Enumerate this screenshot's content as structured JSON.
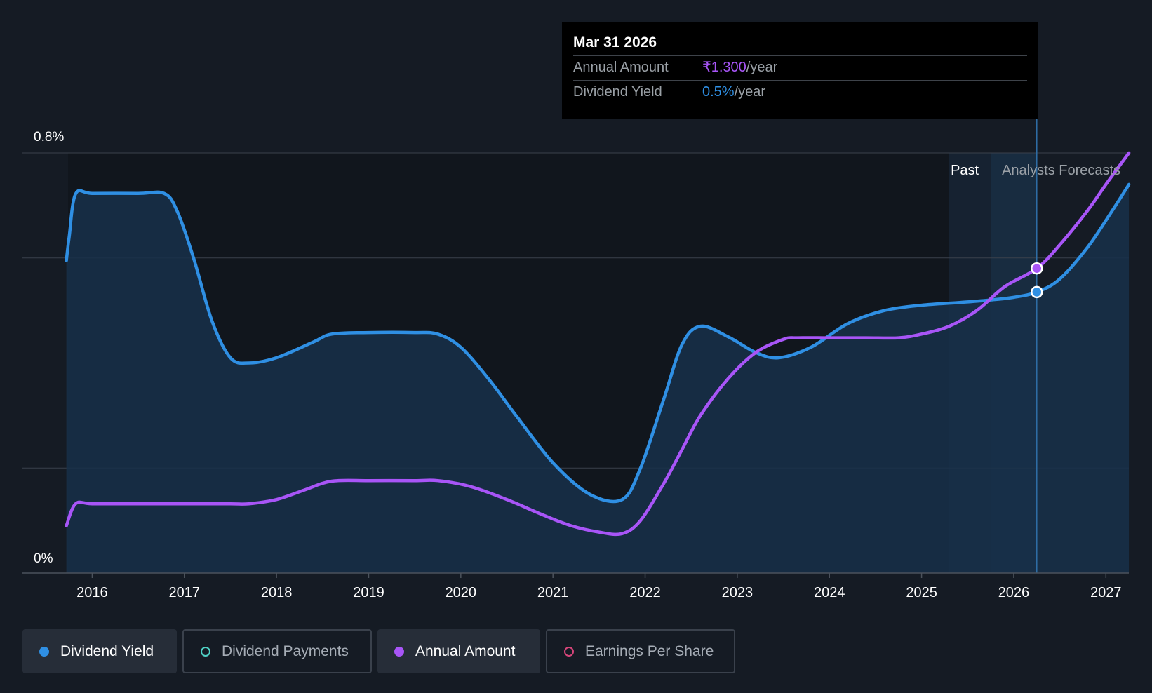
{
  "tooltip": {
    "date": "Mar 31 2026",
    "annual_label": "Annual Amount",
    "annual_value": "₹1.300",
    "annual_unit": "/year",
    "yield_label": "Dividend Yield",
    "yield_value": "0.5%",
    "yield_unit": "/year"
  },
  "legend": [
    {
      "label": "Dividend Yield",
      "color": "#2f8fe3",
      "filled": true,
      "active": true
    },
    {
      "label": "Dividend Payments",
      "color": "#4fd1c5",
      "filled": false,
      "active": false
    },
    {
      "label": "Annual Amount",
      "color": "#a855f7",
      "filled": true,
      "active": true
    },
    {
      "label": "Earnings Per Share",
      "color": "#d6457a",
      "filled": false,
      "active": false
    }
  ],
  "colors": {
    "background": "#151b24",
    "past_region": "#11161d",
    "yield_line": "#2f8fe3",
    "yield_fill": "#17304a",
    "amount_line": "#a855f7",
    "grid": "#3a414c",
    "forecast_band": "#1b3a57"
  },
  "chart_data": {
    "type": "line",
    "title": "",
    "xlabel": "",
    "ylabel": "",
    "ylim": [
      0,
      0.8
    ],
    "xlim": [
      2015.3,
      2027.2
    ],
    "y_ticks": [
      {
        "value": 0,
        "label": "0%"
      },
      {
        "value": 0.8,
        "label": "0.8%"
      }
    ],
    "y_grid": [
      0.2,
      0.4,
      0.6,
      0.8
    ],
    "x_ticks": [
      "2016",
      "2017",
      "2018",
      "2019",
      "2020",
      "2021",
      "2022",
      "2023",
      "2024",
      "2025",
      "2026",
      "2027"
    ],
    "regions": {
      "past_label": "Past",
      "forecast_label": "Analysts Forecasts",
      "past_band": [
        2025.3,
        2025.75
      ],
      "forecast_band": [
        2025.75,
        2026.25
      ],
      "highlight_x": 2026.25
    },
    "series": [
      {
        "name": "Dividend Yield",
        "color": "#2f8fe3",
        "fill": true,
        "points": [
          [
            2015.72,
            0.595
          ],
          [
            2015.75,
            0.64
          ],
          [
            2015.82,
            0.722
          ],
          [
            2016.0,
            0.723
          ],
          [
            2016.5,
            0.723
          ],
          [
            2016.78,
            0.723
          ],
          [
            2016.92,
            0.69
          ],
          [
            2017.1,
            0.6
          ],
          [
            2017.3,
            0.48
          ],
          [
            2017.5,
            0.41
          ],
          [
            2017.7,
            0.4
          ],
          [
            2018.0,
            0.41
          ],
          [
            2018.4,
            0.44
          ],
          [
            2018.6,
            0.455
          ],
          [
            2019.0,
            0.458
          ],
          [
            2019.5,
            0.458
          ],
          [
            2019.75,
            0.455
          ],
          [
            2020.0,
            0.43
          ],
          [
            2020.3,
            0.37
          ],
          [
            2020.6,
            0.3
          ],
          [
            2021.0,
            0.21
          ],
          [
            2021.4,
            0.15
          ],
          [
            2021.75,
            0.14
          ],
          [
            2021.95,
            0.2
          ],
          [
            2022.2,
            0.33
          ],
          [
            2022.4,
            0.435
          ],
          [
            2022.6,
            0.47
          ],
          [
            2022.9,
            0.45
          ],
          [
            2023.2,
            0.42
          ],
          [
            2023.45,
            0.41
          ],
          [
            2023.8,
            0.43
          ],
          [
            2024.2,
            0.475
          ],
          [
            2024.6,
            0.5
          ],
          [
            2025.0,
            0.51
          ],
          [
            2025.4,
            0.515
          ],
          [
            2025.75,
            0.52
          ],
          [
            2026.0,
            0.525
          ],
          [
            2026.25,
            0.535
          ],
          [
            2026.5,
            0.56
          ],
          [
            2026.8,
            0.62
          ],
          [
            2027.05,
            0.685
          ],
          [
            2027.25,
            0.74
          ]
        ]
      },
      {
        "name": "Annual Amount",
        "color": "#a855f7",
        "fill": false,
        "points": [
          [
            2015.72,
            0.09
          ],
          [
            2015.82,
            0.132
          ],
          [
            2016.0,
            0.132
          ],
          [
            2016.5,
            0.132
          ],
          [
            2017.0,
            0.132
          ],
          [
            2017.5,
            0.132
          ],
          [
            2017.7,
            0.132
          ],
          [
            2018.0,
            0.14
          ],
          [
            2018.3,
            0.158
          ],
          [
            2018.6,
            0.175
          ],
          [
            2019.0,
            0.176
          ],
          [
            2019.5,
            0.176
          ],
          [
            2019.75,
            0.176
          ],
          [
            2020.1,
            0.165
          ],
          [
            2020.5,
            0.14
          ],
          [
            2020.9,
            0.11
          ],
          [
            2021.2,
            0.09
          ],
          [
            2021.5,
            0.078
          ],
          [
            2021.75,
            0.075
          ],
          [
            2021.95,
            0.1
          ],
          [
            2022.2,
            0.17
          ],
          [
            2022.4,
            0.235
          ],
          [
            2022.6,
            0.3
          ],
          [
            2022.9,
            0.37
          ],
          [
            2023.2,
            0.42
          ],
          [
            2023.5,
            0.445
          ],
          [
            2023.65,
            0.448
          ],
          [
            2024.0,
            0.448
          ],
          [
            2024.4,
            0.448
          ],
          [
            2024.75,
            0.448
          ],
          [
            2025.0,
            0.455
          ],
          [
            2025.3,
            0.47
          ],
          [
            2025.6,
            0.5
          ],
          [
            2025.9,
            0.545
          ],
          [
            2026.25,
            0.58
          ],
          [
            2026.5,
            0.625
          ],
          [
            2026.8,
            0.69
          ],
          [
            2027.0,
            0.74
          ],
          [
            2027.25,
            0.8
          ]
        ]
      }
    ],
    "highlight_points": [
      {
        "series": "Annual Amount",
        "x": 2026.25,
        "y": 0.58
      },
      {
        "series": "Dividend Yield",
        "x": 2026.25,
        "y": 0.535
      }
    ]
  }
}
